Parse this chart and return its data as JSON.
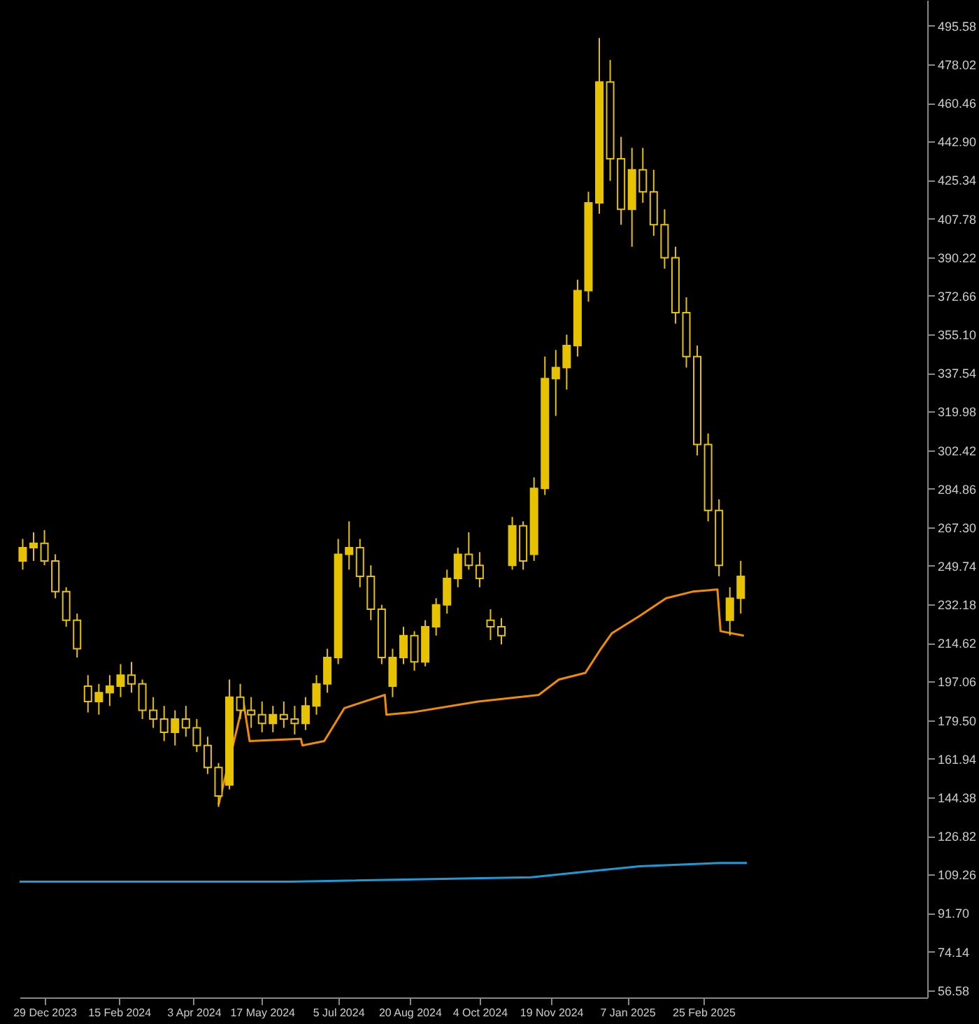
{
  "chart_data": {
    "type": "candlestick",
    "color": "#e6c200",
    "x": [
      "2023-12-15",
      "2023-12-22",
      "2023-12-29",
      "2024-01-05",
      "2024-01-12",
      "2024-01-19",
      "2024-01-26",
      "2024-02-02",
      "2024-02-09",
      "2024-02-16",
      "2024-02-23",
      "2024-03-01",
      "2024-03-08",
      "2024-03-15",
      "2024-03-22",
      "2024-03-29",
      "2024-04-05",
      "2024-04-12",
      "2024-04-19",
      "2024-04-26",
      "2024-05-03",
      "2024-05-10",
      "2024-05-17",
      "2024-05-24",
      "2024-05-31",
      "2024-06-07",
      "2024-06-14",
      "2024-06-21",
      "2024-06-28",
      "2024-07-05",
      "2024-07-12",
      "2024-07-19",
      "2024-07-26",
      "2024-08-02",
      "2024-08-09",
      "2024-08-16",
      "2024-08-23",
      "2024-08-30",
      "2024-09-06",
      "2024-09-13",
      "2024-09-20",
      "2024-09-27",
      "2024-10-04",
      "2024-10-11",
      "2024-10-18",
      "2024-10-25",
      "2024-11-01",
      "2024-11-08",
      "2024-11-15",
      "2024-11-22",
      "2024-11-29",
      "2024-12-06",
      "2024-12-13",
      "2024-12-20",
      "2024-12-27",
      "2025-01-03",
      "2025-01-10",
      "2025-01-17",
      "2025-01-24",
      "2025-01-31",
      "2025-02-07",
      "2025-02-14",
      "2025-02-21",
      "2025-02-28",
      "2025-03-07",
      "2025-03-14",
      "2025-03-21"
    ],
    "ohlc": [
      [
        252,
        262,
        248,
        258
      ],
      [
        258,
        265,
        252,
        260
      ],
      [
        260,
        266,
        250,
        252
      ],
      [
        252,
        255,
        235,
        238
      ],
      [
        238,
        240,
        222,
        225
      ],
      [
        225,
        228,
        208,
        212
      ],
      [
        195,
        200,
        183,
        188
      ],
      [
        188,
        196,
        182,
        192
      ],
      [
        192,
        200,
        186,
        195
      ],
      [
        195,
        205,
        190,
        200
      ],
      [
        200,
        206,
        192,
        196
      ],
      [
        196,
        198,
        180,
        184
      ],
      [
        184,
        190,
        176,
        180
      ],
      [
        180,
        186,
        170,
        174
      ],
      [
        174,
        184,
        168,
        180
      ],
      [
        180,
        186,
        172,
        176
      ],
      [
        176,
        180,
        165,
        168
      ],
      [
        168,
        172,
        155,
        158
      ],
      [
        158,
        160,
        140,
        145
      ],
      [
        150,
        198,
        148,
        190
      ],
      [
        190,
        196,
        180,
        184
      ],
      [
        184,
        190,
        176,
        182
      ],
      [
        182,
        188,
        174,
        178
      ],
      [
        178,
        186,
        174,
        182
      ],
      [
        182,
        188,
        176,
        180
      ],
      [
        180,
        186,
        173,
        178
      ],
      [
        178,
        190,
        175,
        186
      ],
      [
        186,
        200,
        182,
        196
      ],
      [
        196,
        212,
        192,
        208
      ],
      [
        208,
        262,
        205,
        255
      ],
      [
        255,
        270,
        248,
        258
      ],
      [
        258,
        262,
        240,
        245
      ],
      [
        245,
        250,
        225,
        230
      ],
      [
        230,
        232,
        205,
        208
      ],
      [
        195,
        212,
        190,
        208
      ],
      [
        208,
        222,
        205,
        218
      ],
      [
        218,
        220,
        202,
        206
      ],
      [
        206,
        225,
        204,
        222
      ],
      [
        222,
        235,
        218,
        232
      ],
      [
        232,
        248,
        228,
        244
      ],
      [
        244,
        258,
        240,
        255
      ],
      [
        255,
        265,
        248,
        250
      ],
      [
        250,
        256,
        240,
        244
      ],
      [
        225,
        230,
        216,
        222
      ],
      [
        222,
        226,
        214,
        218
      ],
      [
        250,
        272,
        248,
        268
      ],
      [
        268,
        270,
        248,
        252
      ],
      [
        255,
        290,
        252,
        285
      ],
      [
        285,
        345,
        282,
        335
      ],
      [
        335,
        348,
        318,
        340
      ],
      [
        340,
        355,
        330,
        350
      ],
      [
        350,
        380,
        345,
        375
      ],
      [
        375,
        420,
        370,
        415
      ],
      [
        415,
        490,
        410,
        470
      ],
      [
        470,
        480,
        425,
        435
      ],
      [
        435,
        445,
        405,
        412
      ],
      [
        412,
        440,
        395,
        430
      ],
      [
        430,
        440,
        415,
        420
      ],
      [
        420,
        430,
        400,
        405
      ],
      [
        405,
        412,
        385,
        390
      ],
      [
        390,
        395,
        360,
        365
      ],
      [
        365,
        372,
        340,
        345
      ],
      [
        345,
        350,
        300,
        305
      ],
      [
        305,
        310,
        270,
        275
      ],
      [
        275,
        280,
        245,
        250
      ],
      [
        225,
        240,
        218,
        235
      ],
      [
        235,
        252,
        228,
        245
      ]
    ],
    "series": [
      {
        "type": "line",
        "color": "#f08c00",
        "x": [
          "2024-04-19",
          "2024-05-01",
          "2024-05-05",
          "2024-05-09",
          "2024-06-11",
          "2024-06-12",
          "2024-06-26",
          "2024-07-09",
          "2024-08-04",
          "2024-08-05",
          "2024-08-21",
          "2024-10-03",
          "2024-11-11",
          "2024-11-24",
          "2024-12-11",
          "2024-12-21",
          "2024-12-28",
          "2025-01-15",
          "2025-02-01",
          "2025-02-18",
          "2025-03-06",
          "2025-03-08",
          "2025-03-23"
        ],
        "values": [
          141,
          176,
          188,
          170,
          171,
          168,
          170,
          185,
          191,
          182,
          183,
          188,
          191,
          198,
          201,
          212,
          219,
          227,
          235,
          238,
          239,
          220,
          218
        ]
      },
      {
        "type": "line",
        "color": "#1e9bd7",
        "x": [
          "2023-12-13",
          "2024-06-04",
          "2024-11-06",
          "2024-12-11",
          "2025-01-15",
          "2025-03-08",
          "2025-03-25"
        ],
        "values": [
          106,
          106,
          108,
          110.5,
          113,
          114.5,
          114.5
        ]
      }
    ],
    "xlim": [
      "2023-12-13",
      "2025-07-19"
    ],
    "xticks": [
      {
        "value": "2023-12-29",
        "label": "29 Dec 2023"
      },
      {
        "value": "2024-02-15",
        "label": "15 Feb 2024"
      },
      {
        "value": "2024-04-03",
        "label": "3 Apr 2024"
      },
      {
        "value": "2024-05-17",
        "label": "17 May 2024"
      },
      {
        "value": "2024-07-05",
        "label": "5 Jul 2024"
      },
      {
        "value": "2024-08-20",
        "label": "20 Aug 2024"
      },
      {
        "value": "2024-10-04",
        "label": "4 Oct 2024"
      },
      {
        "value": "2024-11-19",
        "label": "19 Nov 2024"
      },
      {
        "value": "2025-01-07",
        "label": "7 Jan 2025"
      },
      {
        "value": "2025-02-25",
        "label": "25 Feb 2025"
      }
    ],
    "ylim": [
      53.3,
      507.3
    ],
    "yticks": [
      56.58,
      74.14,
      {
        "value": 91.7,
        "label": "91.70"
      },
      109.26,
      126.82,
      144.38,
      161.94,
      {
        "value": 179.5,
        "label": "179.50"
      },
      197.06,
      214.62,
      232.18,
      249.74,
      {
        "value": 267.3,
        "label": "267.30"
      },
      284.86,
      302.42,
      319.98,
      337.54,
      {
        "value": 355.1,
        "label": "355.10"
      },
      372.66,
      390.22,
      407.78,
      425.34,
      {
        "value": 442.9,
        "label": "442.90"
      },
      460.46,
      478.02,
      495.58
    ],
    "grid": false
  }
}
